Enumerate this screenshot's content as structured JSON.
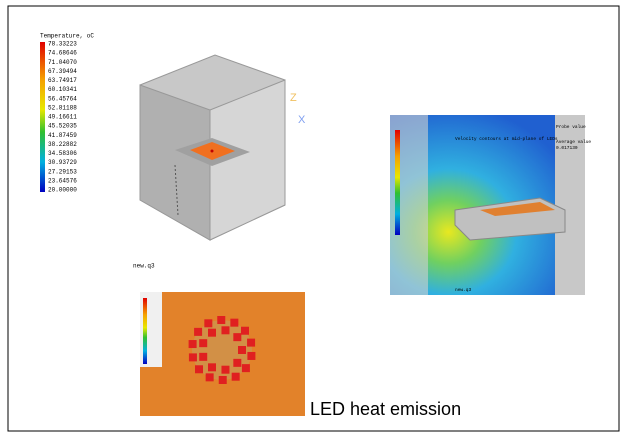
{
  "figure1": {
    "legend_title": "Temperature, oC",
    "legend_values": [
      "78.33223",
      "74.68646",
      "71.04070",
      "67.39494",
      "63.74917",
      "60.10341",
      "56.45764",
      "52.81188",
      "49.16611",
      "45.52035",
      "41.87459",
      "38.22882",
      "34.58306",
      "30.93729",
      "27.29153",
      "23.64576",
      "20.00000"
    ],
    "file_label": "new.q3",
    "axis_z": "Z",
    "axis_x": "X"
  },
  "figure2": {
    "title": "Velocity contours at mid-plane of LEDs",
    "probe_label": "Probe value",
    "average_label": "Average value",
    "average_value": "0.017130",
    "file_label": "new.q3"
  },
  "caption": "LED heat emission"
}
